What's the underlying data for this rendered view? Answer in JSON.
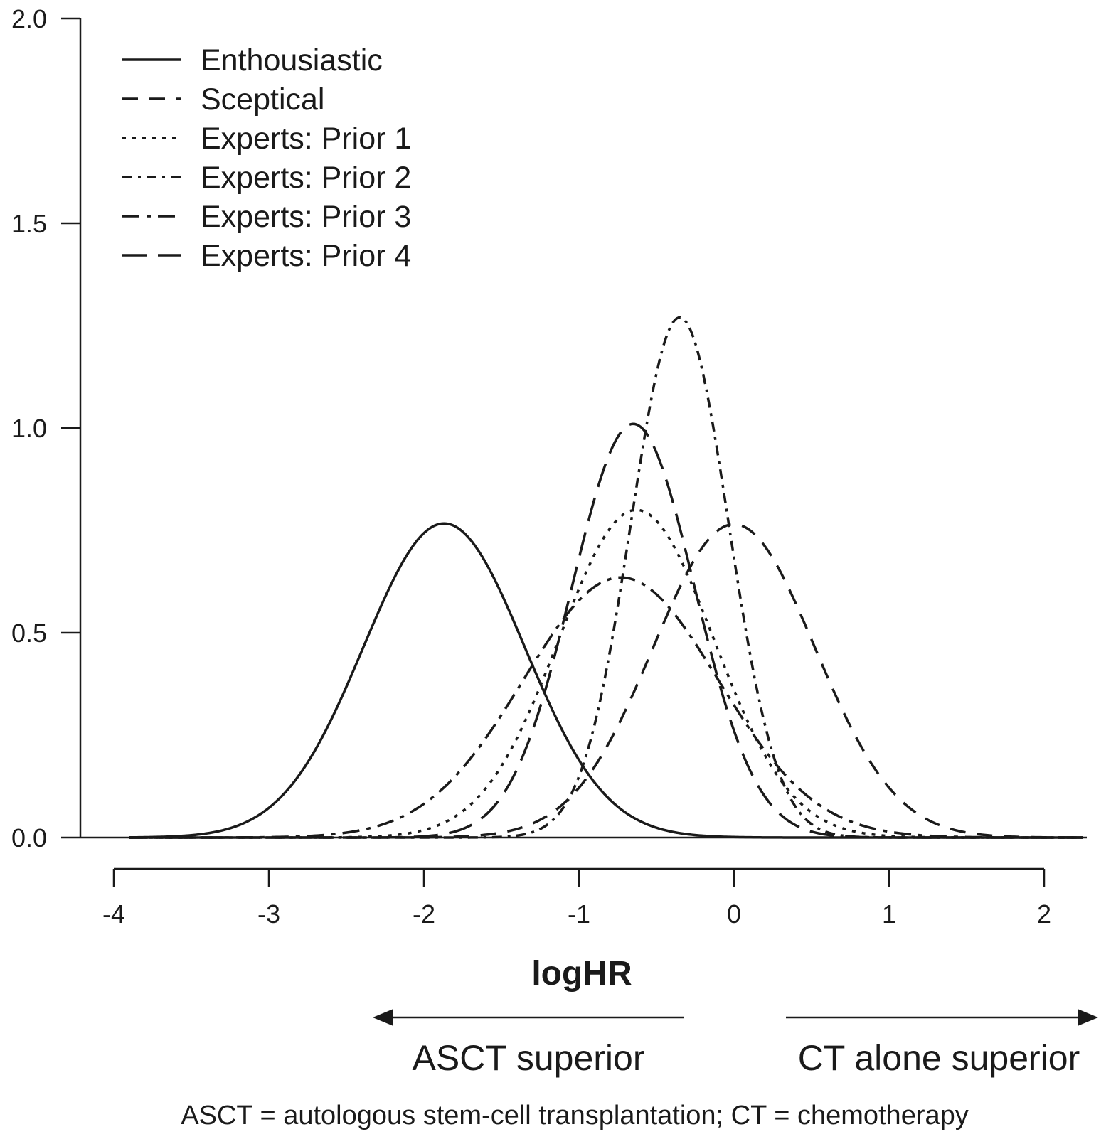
{
  "chart_data": {
    "type": "line",
    "xlabel": "logHR",
    "ylabel": "",
    "xlim": [
      -4,
      2
    ],
    "ylim": [
      0,
      2
    ],
    "x_ticks": [
      "-4",
      "-3",
      "-2",
      "-1",
      "0",
      "1",
      "2"
    ],
    "y_ticks": [
      "0.0",
      "0.5",
      "1.0",
      "1.5",
      "2.0"
    ],
    "legend_position": "top-left",
    "series": [
      {
        "name": "Enthousiastic",
        "style": "solid",
        "mean": -1.87,
        "peak": 0.767
      },
      {
        "name": "Sceptical",
        "style": "dashed",
        "mean": 0.0,
        "peak": 0.765
      },
      {
        "name": "Experts: Prior 1",
        "style": "dotted",
        "mean": -0.63,
        "peak": 0.8
      },
      {
        "name": "Experts: Prior 2",
        "style": "dashdot-short",
        "mean": -0.35,
        "peak": 1.27
      },
      {
        "name": "Experts: Prior 3",
        "style": "dashdot",
        "mean": -0.73,
        "peak": 0.635
      },
      {
        "name": "Experts: Prior 4",
        "style": "longdash",
        "mean": -0.65,
        "peak": 1.01
      }
    ],
    "x_range_drawn": [
      -3.9,
      2.25
    ]
  },
  "annotations": {
    "left_arrow": "ASCT superior",
    "right_arrow": "CT alone superior",
    "footnote": "ASCT = autologous stem-cell transplantation; CT = chemotherapy"
  }
}
